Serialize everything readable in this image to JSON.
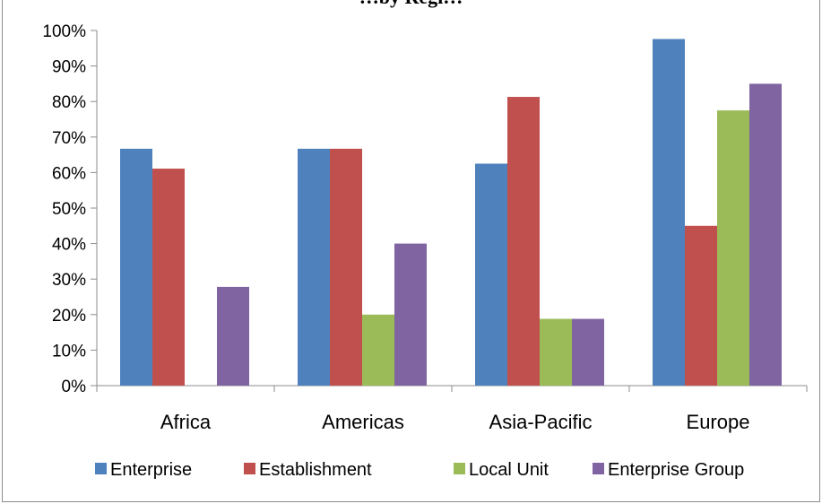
{
  "chart_data": {
    "type": "bar",
    "title": "…by Regi…",
    "categories": [
      "Africa",
      "Americas",
      "Asia-Pacific",
      "Europe"
    ],
    "series": [
      {
        "name": "Enterprise",
        "color": "#4f81bd",
        "values": [
          0.667,
          0.667,
          0.625,
          0.976
        ]
      },
      {
        "name": "Establishment",
        "color": "#c0504d",
        "values": [
          0.611,
          0.667,
          0.813,
          0.45
        ]
      },
      {
        "name": "Local Unit",
        "color": "#9bbb59",
        "values": [
          0,
          0.2,
          0.188,
          0.775
        ]
      },
      {
        "name": "Enterprise Group",
        "color": "#8064a2",
        "values": [
          0.278,
          0.4,
          0.188,
          0.85
        ]
      }
    ],
    "yticks": [
      "0%",
      "10%",
      "20%",
      "30%",
      "40%",
      "50%",
      "60%",
      "70%",
      "80%",
      "90%",
      "100%"
    ],
    "ylim": [
      0,
      1
    ],
    "grid": false,
    "legend": "bottom"
  }
}
